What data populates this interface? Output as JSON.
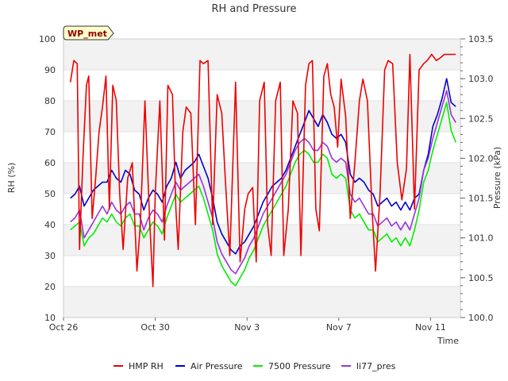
{
  "chart_data": {
    "type": "line",
    "title": "RH and Pressure",
    "xlabel": "Time",
    "ylabel_left": "RH (%)",
    "ylabel_right": "Pressure (kPa)",
    "badge": "WP_met",
    "x_tick_labels": [
      "Oct 26",
      "Oct 30",
      "Nov 3",
      "Nov 7",
      "Nov 11"
    ],
    "x_tick_days": [
      0,
      4,
      8,
      12,
      16
    ],
    "x_range_days": [
      0,
      17.3
    ],
    "y_left_ticks": [
      "10",
      "20",
      "30",
      "40",
      "50",
      "60",
      "70",
      "80",
      "90",
      "100"
    ],
    "y_left_range": [
      10,
      100
    ],
    "y_right_ticks": [
      "100.0",
      "100.5",
      "101.0",
      "101.5",
      "102.0",
      "102.5",
      "103.0",
      "103.5"
    ],
    "y_right_range": [
      100.0,
      103.5
    ],
    "grid": "horizontal bands",
    "legend_position": "bottom",
    "series": [
      {
        "name": "HMP RH",
        "axis": "left",
        "color": "#ee0000",
        "x": [
          0.3,
          0.45,
          0.6,
          0.7,
          0.85,
          1.0,
          1.1,
          1.25,
          1.4,
          1.55,
          1.7,
          1.85,
          2.0,
          2.15,
          2.3,
          2.45,
          2.6,
          2.8,
          3.0,
          3.2,
          3.35,
          3.55,
          3.75,
          3.9,
          4.0,
          4.2,
          4.4,
          4.55,
          4.75,
          4.9,
          5.0,
          5.2,
          5.35,
          5.55,
          5.75,
          5.95,
          6.1,
          6.3,
          6.5,
          6.7,
          6.9,
          7.05,
          7.25,
          7.5,
          7.7,
          7.9,
          8.05,
          8.25,
          8.4,
          8.55,
          8.75,
          8.9,
          9.05,
          9.25,
          9.45,
          9.6,
          9.8,
          10.0,
          10.2,
          10.35,
          10.55,
          10.7,
          10.85,
          11.0,
          11.15,
          11.35,
          11.5,
          11.65,
          11.8,
          11.95,
          12.1,
          12.3,
          12.5,
          12.7,
          12.9,
          13.05,
          13.25,
          13.45,
          13.6,
          13.8,
          14.0,
          14.15,
          14.35,
          14.55,
          14.75,
          14.95,
          15.1,
          15.3,
          15.5,
          15.7,
          15.85,
          16.05,
          16.25,
          16.45,
          16.6,
          16.8,
          16.95,
          17.1
        ],
        "y": [
          86,
          93,
          92,
          32,
          62,
          85,
          88,
          42,
          55,
          70,
          78,
          88,
          45,
          85,
          80,
          50,
          32,
          55,
          60,
          25,
          40,
          80,
          42,
          20,
          50,
          80,
          35,
          85,
          82,
          45,
          32,
          70,
          78,
          76,
          40,
          93,
          92,
          93,
          40,
          82,
          76,
          55,
          30,
          86,
          28,
          45,
          50,
          52,
          28,
          80,
          86,
          40,
          30,
          80,
          86,
          30,
          45,
          80,
          76,
          30,
          85,
          92,
          93,
          45,
          38,
          88,
          92,
          82,
          78,
          65,
          87,
          75,
          42,
          60,
          80,
          87,
          80,
          45,
          25,
          50,
          90,
          93,
          92,
          60,
          48,
          58,
          95,
          45,
          90,
          92,
          93,
          95,
          93,
          94,
          95,
          95,
          95,
          95
        ]
      },
      {
        "name": "Air Pressure",
        "axis": "right",
        "color": "#0000cc",
        "x": [
          0.3,
          0.5,
          0.7,
          0.9,
          1.1,
          1.3,
          1.5,
          1.7,
          1.9,
          2.1,
          2.3,
          2.5,
          2.7,
          2.9,
          3.1,
          3.3,
          3.5,
          3.7,
          3.9,
          4.1,
          4.3,
          4.5,
          4.7,
          4.9,
          5.1,
          5.3,
          5.5,
          5.7,
          5.9,
          6.1,
          6.3,
          6.5,
          6.7,
          6.9,
          7.1,
          7.3,
          7.5,
          7.7,
          7.9,
          8.1,
          8.3,
          8.5,
          8.7,
          8.9,
          9.1,
          9.3,
          9.5,
          9.7,
          9.9,
          10.1,
          10.3,
          10.5,
          10.7,
          10.9,
          11.1,
          11.3,
          11.5,
          11.7,
          11.9,
          12.1,
          12.3,
          12.5,
          12.7,
          12.9,
          13.1,
          13.3,
          13.5,
          13.7,
          13.9,
          14.1,
          14.3,
          14.5,
          14.7,
          14.9,
          15.1,
          15.3,
          15.5,
          15.7,
          15.9,
          16.1,
          16.3,
          16.5,
          16.7,
          16.9,
          17.1
        ],
        "y": [
          101.5,
          101.55,
          101.65,
          101.4,
          101.5,
          101.6,
          101.65,
          101.7,
          101.7,
          101.85,
          101.75,
          101.7,
          101.85,
          101.8,
          101.6,
          101.55,
          101.35,
          101.5,
          101.6,
          101.55,
          101.45,
          101.65,
          101.75,
          101.95,
          101.75,
          101.85,
          101.9,
          101.95,
          102.05,
          101.9,
          101.75,
          101.5,
          101.2,
          101.05,
          100.95,
          100.85,
          100.8,
          100.9,
          100.95,
          101.05,
          101.15,
          101.3,
          101.45,
          101.55,
          101.65,
          101.7,
          101.75,
          101.85,
          102.0,
          102.15,
          102.3,
          102.45,
          102.6,
          102.5,
          102.4,
          102.55,
          102.45,
          102.3,
          102.25,
          102.3,
          102.2,
          101.8,
          101.7,
          101.75,
          101.7,
          101.6,
          101.55,
          101.4,
          101.45,
          101.5,
          101.4,
          101.45,
          101.35,
          101.45,
          101.35,
          101.5,
          101.55,
          101.85,
          102.05,
          102.4,
          102.55,
          102.75,
          103.0,
          102.7,
          102.65
        ]
      },
      {
        "name": "7500 Pressure",
        "axis": "right",
        "color": "#00ee00",
        "x": [
          0.3,
          0.5,
          0.7,
          0.9,
          1.1,
          1.3,
          1.5,
          1.7,
          1.9,
          2.1,
          2.3,
          2.5,
          2.7,
          2.9,
          3.1,
          3.3,
          3.5,
          3.7,
          3.9,
          4.1,
          4.3,
          4.5,
          4.7,
          4.9,
          5.1,
          5.3,
          5.5,
          5.7,
          5.9,
          6.1,
          6.3,
          6.5,
          6.7,
          6.9,
          7.1,
          7.3,
          7.5,
          7.7,
          7.9,
          8.1,
          8.3,
          8.5,
          8.7,
          8.9,
          9.1,
          9.3,
          9.5,
          9.7,
          9.9,
          10.1,
          10.3,
          10.5,
          10.7,
          10.9,
          11.1,
          11.3,
          11.5,
          11.7,
          11.9,
          12.1,
          12.3,
          12.5,
          12.7,
          12.9,
          13.1,
          13.3,
          13.5,
          13.7,
          13.9,
          14.1,
          14.3,
          14.5,
          14.7,
          14.9,
          15.1,
          15.3,
          15.5,
          15.7,
          15.9,
          16.1,
          16.3,
          16.5,
          16.7,
          16.9,
          17.1
        ],
        "y": [
          101.1,
          101.15,
          101.2,
          100.9,
          101.0,
          101.05,
          101.15,
          101.25,
          101.2,
          101.3,
          101.2,
          101.15,
          101.25,
          101.3,
          101.15,
          101.15,
          101.0,
          101.1,
          101.2,
          101.15,
          101.05,
          101.25,
          101.4,
          101.55,
          101.45,
          101.5,
          101.55,
          101.6,
          101.65,
          101.5,
          101.3,
          101.1,
          100.8,
          100.65,
          100.55,
          100.45,
          100.4,
          100.5,
          100.6,
          100.75,
          100.85,
          101.0,
          101.15,
          101.25,
          101.35,
          101.45,
          101.55,
          101.65,
          101.8,
          101.95,
          102.05,
          102.1,
          102.05,
          101.95,
          101.95,
          102.05,
          102.0,
          101.8,
          101.75,
          101.8,
          101.75,
          101.35,
          101.25,
          101.3,
          101.2,
          101.1,
          101.1,
          100.95,
          101.0,
          101.05,
          100.95,
          101.0,
          100.9,
          101.0,
          100.9,
          101.1,
          101.35,
          101.7,
          101.85,
          102.1,
          102.3,
          102.5,
          102.7,
          102.35,
          102.2
        ]
      },
      {
        "name": "li77_pres",
        "axis": "right",
        "color": "#9933dd",
        "x": [
          0.3,
          0.5,
          0.7,
          0.9,
          1.1,
          1.3,
          1.5,
          1.7,
          1.9,
          2.1,
          2.3,
          2.5,
          2.7,
          2.9,
          3.1,
          3.3,
          3.5,
          3.7,
          3.9,
          4.1,
          4.3,
          4.5,
          4.7,
          4.9,
          5.1,
          5.3,
          5.5,
          5.7,
          5.9,
          6.1,
          6.3,
          6.5,
          6.7,
          6.9,
          7.1,
          7.3,
          7.5,
          7.7,
          7.9,
          8.1,
          8.3,
          8.5,
          8.7,
          8.9,
          9.1,
          9.3,
          9.5,
          9.7,
          9.9,
          10.1,
          10.3,
          10.5,
          10.7,
          10.9,
          11.1,
          11.3,
          11.5,
          11.7,
          11.9,
          12.1,
          12.3,
          12.5,
          12.7,
          12.9,
          13.1,
          13.3,
          13.5,
          13.7,
          13.9,
          14.1,
          14.3,
          14.5,
          14.7,
          14.9,
          15.1,
          15.3,
          15.5,
          15.7,
          15.9,
          16.1,
          16.3,
          16.5,
          16.7,
          16.9,
          17.1
        ],
        "y": [
          101.2,
          101.25,
          101.35,
          101.0,
          101.1,
          101.2,
          101.3,
          101.4,
          101.3,
          101.45,
          101.35,
          101.3,
          101.4,
          101.45,
          101.3,
          101.3,
          101.1,
          101.25,
          101.35,
          101.3,
          101.2,
          101.4,
          101.55,
          101.7,
          101.6,
          101.65,
          101.7,
          101.75,
          101.8,
          101.65,
          101.45,
          101.25,
          100.95,
          100.8,
          100.7,
          100.6,
          100.55,
          100.65,
          100.75,
          100.9,
          101.0,
          101.15,
          101.3,
          101.4,
          101.5,
          101.6,
          101.7,
          101.8,
          101.95,
          102.1,
          102.2,
          102.25,
          102.2,
          102.1,
          102.1,
          102.2,
          102.15,
          102.0,
          101.95,
          102.0,
          101.95,
          101.55,
          101.45,
          101.5,
          101.4,
          101.3,
          101.3,
          101.15,
          101.2,
          101.25,
          101.15,
          101.2,
          101.1,
          101.2,
          101.1,
          101.3,
          101.5,
          101.85,
          102.0,
          102.25,
          102.45,
          102.65,
          102.85,
          102.55,
          102.45
        ]
      }
    ]
  }
}
